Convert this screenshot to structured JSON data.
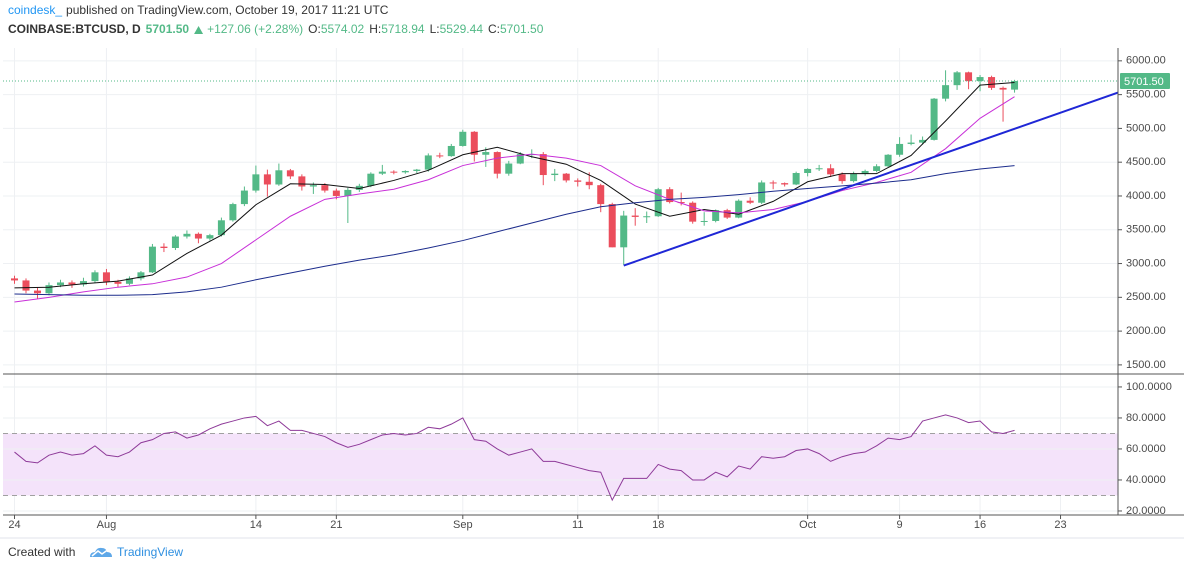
{
  "header": {
    "author": "coindesk_",
    "published": "published on TradingView.com, October 19, 2017 11:21 UTC",
    "symbol": "COINBASE:BTCUSD, D",
    "price": "5701.50",
    "change": "+127.06 (+2.28%)",
    "ohlc": [
      [
        "O:",
        "5574.02"
      ],
      [
        "H:",
        "5718.94"
      ],
      [
        "L:",
        "5529.44"
      ],
      [
        "C:",
        "5701.50"
      ]
    ]
  },
  "footer": {
    "prefix": "Created with",
    "brand": "TradingView"
  },
  "chart_data": [
    {
      "type": "candlestick",
      "x": [
        "2017-07-24",
        "2017-07-25",
        "2017-07-26",
        "2017-07-27",
        "2017-07-28",
        "2017-07-29",
        "2017-07-30",
        "2017-07-31",
        "2017-08-01",
        "2017-08-02",
        "2017-08-03",
        "2017-08-04",
        "2017-08-05",
        "2017-08-06",
        "2017-08-07",
        "2017-08-08",
        "2017-08-09",
        "2017-08-10",
        "2017-08-11",
        "2017-08-12",
        "2017-08-13",
        "2017-08-14",
        "2017-08-15",
        "2017-08-16",
        "2017-08-17",
        "2017-08-18",
        "2017-08-19",
        "2017-08-20",
        "2017-08-21",
        "2017-08-22",
        "2017-08-23",
        "2017-08-24",
        "2017-08-25",
        "2017-08-26",
        "2017-08-27",
        "2017-08-28",
        "2017-08-29",
        "2017-08-30",
        "2017-08-31",
        "2017-09-01",
        "2017-09-02",
        "2017-09-03",
        "2017-09-04",
        "2017-09-05",
        "2017-09-06",
        "2017-09-07",
        "2017-09-08",
        "2017-09-09",
        "2017-09-10",
        "2017-09-11",
        "2017-09-12",
        "2017-09-13",
        "2017-09-14",
        "2017-09-15",
        "2017-09-16",
        "2017-09-17",
        "2017-09-18",
        "2017-09-19",
        "2017-09-20",
        "2017-09-21",
        "2017-09-22",
        "2017-09-23",
        "2017-09-24",
        "2017-09-25",
        "2017-09-26",
        "2017-09-27",
        "2017-09-28",
        "2017-09-29",
        "2017-09-30",
        "2017-10-01",
        "2017-10-02",
        "2017-10-03",
        "2017-10-04",
        "2017-10-05",
        "2017-10-06",
        "2017-10-07",
        "2017-10-08",
        "2017-10-09",
        "2017-10-10",
        "2017-10-11",
        "2017-10-12",
        "2017-10-13",
        "2017-10-14",
        "2017-10-15",
        "2017-10-16",
        "2017-10-17",
        "2017-10-18",
        "2017-10-19"
      ],
      "open": [
        2780,
        2750,
        2600,
        2560,
        2680,
        2720,
        2690,
        2740,
        2870,
        2730,
        2700,
        2780,
        2870,
        3250,
        3230,
        3400,
        3440,
        3370,
        3420,
        3640,
        3880,
        4080,
        4320,
        4170,
        4380,
        4290,
        4140,
        4160,
        4080,
        4000,
        4090,
        4150,
        4330,
        4360,
        4350,
        4370,
        4390,
        4600,
        4590,
        4740,
        4950,
        4610,
        4650,
        4330,
        4480,
        4620,
        4620,
        4310,
        4330,
        4230,
        4210,
        4160,
        3880,
        3240,
        3710,
        3690,
        3700,
        4100,
        3910,
        3900,
        3620,
        3630,
        3790,
        3680,
        3930,
        3900,
        4200,
        4190,
        4170,
        4340,
        4400,
        4410,
        4320,
        4220,
        4330,
        4370,
        4440,
        4610,
        4770,
        4790,
        4830,
        5440,
        5640,
        5830,
        5700,
        5760,
        5600,
        5574.02
      ],
      "high": [
        2820,
        2780,
        2640,
        2720,
        2760,
        2750,
        2790,
        2900,
        2920,
        2760,
        2810,
        2890,
        3290,
        3300,
        3420,
        3490,
        3460,
        3440,
        3680,
        3900,
        4140,
        4450,
        4390,
        4480,
        4400,
        4320,
        4200,
        4190,
        4110,
        4120,
        4180,
        4350,
        4460,
        4380,
        4380,
        4400,
        4630,
        4640,
        4770,
        4980,
        4960,
        4720,
        4660,
        4520,
        4650,
        4690,
        4650,
        4400,
        4340,
        4260,
        4350,
        4180,
        3900,
        3780,
        3820,
        3770,
        4120,
        4130,
        4050,
        3920,
        3760,
        3800,
        3810,
        3950,
        3980,
        4230,
        4230,
        4200,
        4360,
        4410,
        4460,
        4470,
        4350,
        4360,
        4390,
        4470,
        4620,
        4870,
        4910,
        4880,
        5450,
        5860,
        5850,
        5840,
        5790,
        5780,
        5620,
        5718.94
      ],
      "low": [
        2700,
        2560,
        2480,
        2530,
        2650,
        2640,
        2660,
        2710,
        2680,
        2650,
        2680,
        2750,
        2860,
        3170,
        3200,
        3370,
        3300,
        3340,
        3400,
        3620,
        3850,
        4050,
        3990,
        4150,
        4250,
        4080,
        4030,
        4050,
        3950,
        3600,
        4060,
        4130,
        4310,
        4320,
        4330,
        4340,
        4360,
        4560,
        4580,
        4730,
        4510,
        4430,
        4260,
        4300,
        4470,
        4560,
        4160,
        4220,
        4200,
        4140,
        4100,
        3760,
        3240,
        2980,
        3560,
        3600,
        3690,
        3890,
        3860,
        3590,
        3560,
        3610,
        3660,
        3670,
        3880,
        3880,
        4100,
        4140,
        4160,
        4290,
        4370,
        4280,
        4180,
        4200,
        4300,
        4350,
        4430,
        4580,
        4750,
        4760,
        4820,
        5400,
        5570,
        5580,
        5550,
        5570,
        5100,
        5529.44
      ],
      "close": [
        2750,
        2600,
        2560,
        2680,
        2720,
        2690,
        2740,
        2870,
        2730,
        2700,
        2780,
        2870,
        3250,
        3230,
        3400,
        3440,
        3370,
        3420,
        3640,
        3880,
        4080,
        4320,
        4170,
        4380,
        4290,
        4140,
        4160,
        4080,
        4000,
        4090,
        4150,
        4330,
        4360,
        4350,
        4370,
        4390,
        4600,
        4590,
        4740,
        4950,
        4610,
        4650,
        4330,
        4480,
        4620,
        4620,
        4310,
        4330,
        4230,
        4210,
        4160,
        3880,
        3240,
        3710,
        3690,
        3700,
        4100,
        3910,
        3900,
        3620,
        3630,
        3790,
        3680,
        3930,
        3900,
        4200,
        4190,
        4170,
        4340,
        4400,
        4410,
        4320,
        4220,
        4330,
        4370,
        4440,
        4610,
        4770,
        4790,
        4830,
        5440,
        5640,
        5830,
        5700,
        5760,
        5600,
        5574.44,
        5701.5
      ],
      "up_color": "#53b987",
      "down_color": "#eb4d5c",
      "series": [
        {
          "color": "#111111",
          "x": [
            "2017-07-24",
            "2017-07-27",
            "2017-07-30",
            "2017-08-02",
            "2017-08-05",
            "2017-08-08",
            "2017-08-11",
            "2017-08-14",
            "2017-08-17",
            "2017-08-20",
            "2017-08-23",
            "2017-08-26",
            "2017-08-29",
            "2017-09-01",
            "2017-09-04",
            "2017-09-07",
            "2017-09-10",
            "2017-09-13",
            "2017-09-16",
            "2017-09-19",
            "2017-09-22",
            "2017-09-25",
            "2017-09-28",
            "2017-10-01",
            "2017-10-04",
            "2017-10-07",
            "2017-10-10",
            "2017-10-13",
            "2017-10-16",
            "2017-10-19"
          ],
          "values": [
            2640,
            2650,
            2700,
            2740,
            2830,
            3150,
            3420,
            3870,
            4180,
            4170,
            4110,
            4230,
            4380,
            4610,
            4720,
            4580,
            4470,
            4230,
            3880,
            3700,
            3800,
            3730,
            3920,
            4210,
            4330,
            4330,
            4600,
            5110,
            5640,
            5680
          ]
        },
        {
          "color": "#c830d8",
          "x": [
            "2017-07-24",
            "2017-07-27",
            "2017-07-30",
            "2017-08-02",
            "2017-08-05",
            "2017-08-08",
            "2017-08-11",
            "2017-08-14",
            "2017-08-17",
            "2017-08-20",
            "2017-08-23",
            "2017-08-26",
            "2017-08-29",
            "2017-09-01",
            "2017-09-04",
            "2017-09-07",
            "2017-09-10",
            "2017-09-13",
            "2017-09-16",
            "2017-09-19",
            "2017-09-22",
            "2017-09-25",
            "2017-09-28",
            "2017-10-01",
            "2017-10-04",
            "2017-10-07",
            "2017-10-10",
            "2017-10-13",
            "2017-10-16",
            "2017-10-19"
          ],
          "values": [
            2430,
            2500,
            2580,
            2650,
            2700,
            2800,
            3000,
            3350,
            3700,
            3950,
            4030,
            4100,
            4240,
            4450,
            4560,
            4620,
            4560,
            4450,
            4150,
            3950,
            3780,
            3750,
            3800,
            3920,
            4080,
            4200,
            4350,
            4700,
            5150,
            5470
          ]
        },
        {
          "color": "#1c2c8c",
          "x": [
            "2017-07-24",
            "2017-07-27",
            "2017-07-30",
            "2017-08-02",
            "2017-08-05",
            "2017-08-08",
            "2017-08-11",
            "2017-08-14",
            "2017-08-17",
            "2017-08-20",
            "2017-08-23",
            "2017-08-26",
            "2017-08-29",
            "2017-09-01",
            "2017-09-04",
            "2017-09-07",
            "2017-09-10",
            "2017-09-13",
            "2017-09-16",
            "2017-09-19",
            "2017-09-22",
            "2017-09-25",
            "2017-09-28",
            "2017-10-01",
            "2017-10-04",
            "2017-10-07",
            "2017-10-10",
            "2017-10-13",
            "2017-10-16",
            "2017-10-19"
          ],
          "values": [
            2550,
            2540,
            2530,
            2530,
            2540,
            2580,
            2650,
            2760,
            2860,
            2960,
            3050,
            3130,
            3230,
            3340,
            3470,
            3600,
            3730,
            3840,
            3900,
            3950,
            3980,
            4020,
            4070,
            4110,
            4150,
            4190,
            4240,
            4330,
            4400,
            4450
          ]
        }
      ],
      "trendline": {
        "color": "#1f27d6",
        "x": [
          "2017-09-15",
          "2017-10-28"
        ],
        "values": [
          2970,
          5530
        ]
      },
      "last_price": {
        "value": 5701.5,
        "label": "5701.50"
      },
      "xlim": [
        "2017-07-23",
        "2017-10-28"
      ],
      "xticks": [
        {
          "value": "2017-07-24",
          "label": "24"
        },
        {
          "value": "2017-08-01",
          "label": "Aug"
        },
        {
          "value": "2017-08-14",
          "label": "14"
        },
        {
          "value": "2017-08-21",
          "label": "21"
        },
        {
          "value": "2017-09-01",
          "label": "Sep"
        },
        {
          "value": "2017-09-11",
          "label": "11"
        },
        {
          "value": "2017-09-18",
          "label": "18"
        },
        {
          "value": "2017-10-01",
          "label": "Oct"
        },
        {
          "value": "2017-10-09",
          "label": "9"
        },
        {
          "value": "2017-10-16",
          "label": "16"
        },
        {
          "value": "2017-10-23",
          "label": "23"
        }
      ],
      "ylim": [
        1380,
        6190
      ],
      "yticks": [
        {
          "value": 1500,
          "label": "1500.00"
        },
        {
          "value": 2000,
          "label": "2000.00"
        },
        {
          "value": 2500,
          "label": "2500.00"
        },
        {
          "value": 3000,
          "label": "3000.00"
        },
        {
          "value": 3500,
          "label": "3500.00"
        },
        {
          "value": 4000,
          "label": "4000.00"
        },
        {
          "value": 4500,
          "label": "4500.00"
        },
        {
          "value": 5000,
          "label": "5000.00"
        },
        {
          "value": 5500,
          "label": "5500.00"
        },
        {
          "value": 6000,
          "label": "6000.00"
        }
      ],
      "grid": true
    },
    {
      "type": "line",
      "x": [
        "2017-07-24",
        "2017-07-25",
        "2017-07-26",
        "2017-07-27",
        "2017-07-28",
        "2017-07-29",
        "2017-07-30",
        "2017-07-31",
        "2017-08-01",
        "2017-08-02",
        "2017-08-03",
        "2017-08-04",
        "2017-08-05",
        "2017-08-06",
        "2017-08-07",
        "2017-08-08",
        "2017-08-09",
        "2017-08-10",
        "2017-08-11",
        "2017-08-12",
        "2017-08-13",
        "2017-08-14",
        "2017-08-15",
        "2017-08-16",
        "2017-08-17",
        "2017-08-18",
        "2017-08-19",
        "2017-08-20",
        "2017-08-21",
        "2017-08-22",
        "2017-08-23",
        "2017-08-24",
        "2017-08-25",
        "2017-08-26",
        "2017-08-27",
        "2017-08-28",
        "2017-08-29",
        "2017-08-30",
        "2017-08-31",
        "2017-09-01",
        "2017-09-02",
        "2017-09-03",
        "2017-09-04",
        "2017-09-05",
        "2017-09-06",
        "2017-09-07",
        "2017-09-08",
        "2017-09-09",
        "2017-09-10",
        "2017-09-11",
        "2017-09-12",
        "2017-09-13",
        "2017-09-14",
        "2017-09-15",
        "2017-09-16",
        "2017-09-17",
        "2017-09-18",
        "2017-09-19",
        "2017-09-20",
        "2017-09-21",
        "2017-09-22",
        "2017-09-23",
        "2017-09-24",
        "2017-09-25",
        "2017-09-26",
        "2017-09-27",
        "2017-09-28",
        "2017-09-29",
        "2017-09-30",
        "2017-10-01",
        "2017-10-02",
        "2017-10-03",
        "2017-10-04",
        "2017-10-05",
        "2017-10-06",
        "2017-10-07",
        "2017-10-08",
        "2017-10-09",
        "2017-10-10",
        "2017-10-11",
        "2017-10-12",
        "2017-10-13",
        "2017-10-14",
        "2017-10-15",
        "2017-10-16",
        "2017-10-17",
        "2017-10-18",
        "2017-10-19"
      ],
      "series": [
        {
          "color": "#8e3a99",
          "values": [
            58,
            52,
            51,
            56,
            58,
            56,
            57,
            62,
            56,
            55,
            58,
            64,
            66,
            70,
            71,
            67,
            69,
            73,
            76,
            78,
            80,
            81,
            75,
            78,
            72,
            72,
            70,
            68,
            64,
            61,
            63,
            66,
            69,
            70,
            69,
            70,
            74,
            73,
            76,
            80,
            66,
            65,
            60,
            56,
            58,
            60,
            52,
            52,
            50,
            48,
            46,
            45,
            27,
            41,
            41,
            41,
            50,
            47,
            46,
            40,
            40,
            45,
            42,
            49,
            47,
            55,
            54,
            55,
            59,
            60,
            57,
            52,
            55,
            57,
            58,
            62,
            67,
            66,
            68,
            78,
            80,
            82,
            80,
            77,
            78,
            71,
            70,
            72
          ]
        }
      ],
      "band": [
        30,
        70
      ],
      "band_color": "#f4e3fa",
      "xlim": [
        "2017-07-23",
        "2017-10-28"
      ],
      "ylim": [
        17.4,
        107.7
      ],
      "yticks": [
        {
          "value": 20,
          "label": "20.0000"
        },
        {
          "value": 40,
          "label": "40.0000"
        },
        {
          "value": 60,
          "label": "60.0000"
        },
        {
          "value": 80,
          "label": "80.0000"
        },
        {
          "value": 100,
          "label": "100.0000"
        }
      ],
      "grid": true
    }
  ]
}
